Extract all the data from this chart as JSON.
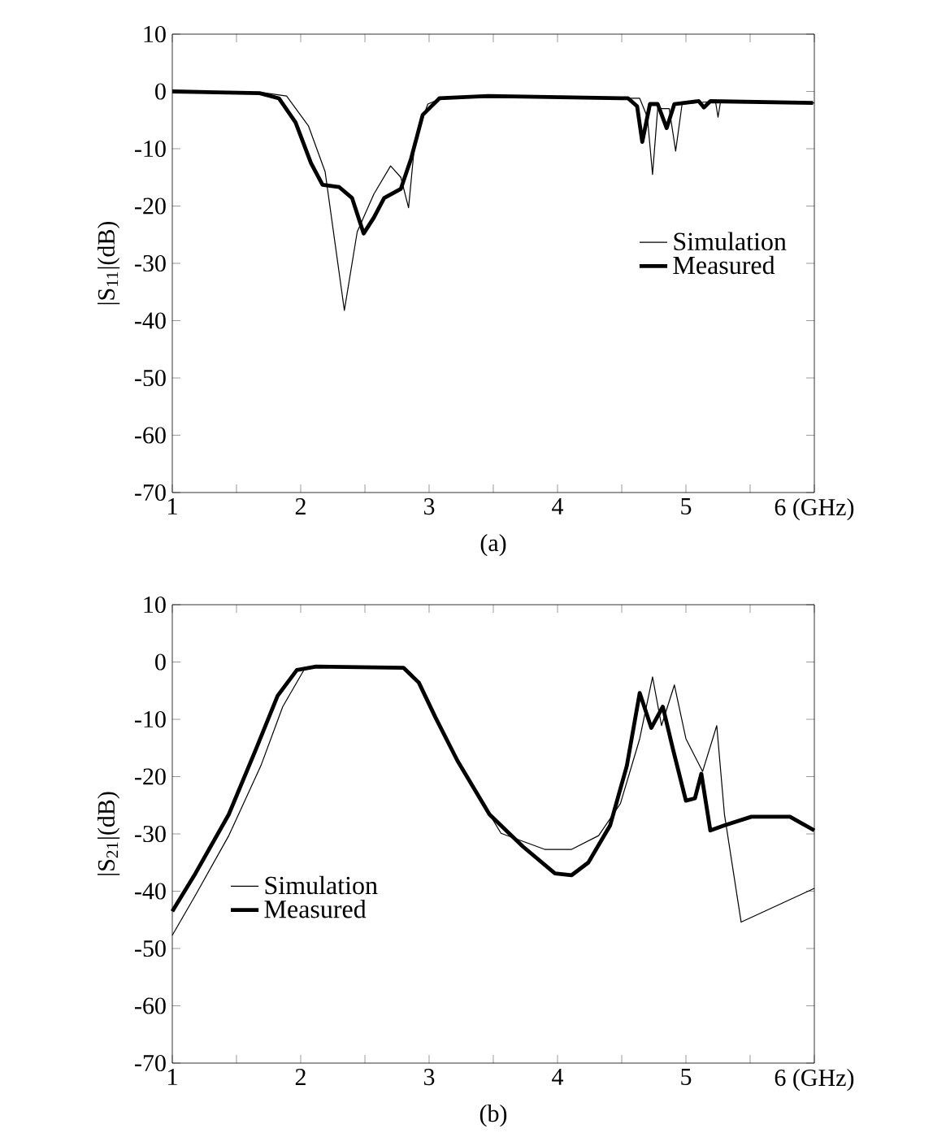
{
  "chart_data": [
    {
      "type": "line",
      "ylabel": "|S$_{11}$|(dB)",
      "annotations": [
        "(a)"
      ],
      "legend": "right",
      "grid": false,
      "marker": "none",
      "line_style": "solid",
      "xlim": [
        1,
        6
      ],
      "ylim": [
        -70,
        10
      ],
      "xticks": [
        1,
        {
          "value": 1.5,
          "label": null
        },
        2,
        {
          "value": 2.5,
          "label": null
        },
        3,
        {
          "value": 3.5,
          "label": null
        },
        4,
        {
          "value": 4.5,
          "label": null
        },
        5,
        {
          "value": 5.5,
          "label": null
        },
        {
          "value": 6,
          "label": "6 (GHz)"
        }
      ],
      "yticks": [
        -70,
        -60,
        -50,
        -40,
        -30,
        -20,
        -10,
        0,
        10
      ],
      "series": [
        {
          "name": "Simulation",
          "color": "#000000",
          "x": [
            1.0,
            1.7,
            1.89,
            2.06,
            2.19,
            2.34,
            2.44,
            2.57,
            2.7,
            2.78,
            2.84,
            2.89,
            2.99,
            3.12,
            4.55,
            4.64,
            4.7,
            4.74,
            4.78,
            4.87,
            4.92,
            4.97,
            5.23,
            5.25,
            5.27,
            6.0
          ],
          "values": [
            0,
            -0.2,
            -0.8,
            -6,
            -14,
            -38.2,
            -24.5,
            -17.9,
            -13,
            -15,
            -20.3,
            -8.5,
            -2.2,
            -1,
            -1.2,
            -1.2,
            -4.5,
            -14.5,
            -3,
            -3,
            -10.4,
            -2.2,
            -1.7,
            -4.5,
            -1.7,
            -2
          ]
        },
        {
          "name": "Measured",
          "color": "#000000",
          "x": [
            1.0,
            1.68,
            1.83,
            1.96,
            2.08,
            2.17,
            2.3,
            2.4,
            2.49,
            2.57,
            2.65,
            2.78,
            2.86,
            2.95,
            3.08,
            3.46,
            4.55,
            4.62,
            4.66,
            4.72,
            4.78,
            4.85,
            4.91,
            5.1,
            5.14,
            5.19,
            5.99
          ],
          "values": [
            0,
            -0.3,
            -1.2,
            -5.4,
            -12.5,
            -16.3,
            -16.7,
            -18.6,
            -24.8,
            -22,
            -18.6,
            -17,
            -11.7,
            -4.1,
            -1.2,
            -0.8,
            -1.2,
            -2.6,
            -8.8,
            -2.2,
            -2.2,
            -6.4,
            -2.2,
            -1.7,
            -2.8,
            -1.7,
            -2
          ]
        }
      ]
    },
    {
      "type": "line",
      "ylabel": "|S$_{21}$|(dB)",
      "annotations": [
        "(b)"
      ],
      "legend": "left",
      "grid": false,
      "marker": "none",
      "line_style": "solid",
      "xlim": [
        1,
        6
      ],
      "ylim": [
        -70,
        10
      ],
      "xticks": [
        1,
        {
          "value": 1.5,
          "label": null
        },
        2,
        {
          "value": 2.5,
          "label": null
        },
        3,
        {
          "value": 3.5,
          "label": null
        },
        4,
        {
          "value": 4.5,
          "label": null
        },
        5,
        {
          "value": 5.5,
          "label": null
        },
        {
          "value": 6,
          "label": "6 (GHz)"
        }
      ],
      "yticks": [
        -70,
        -60,
        -50,
        -40,
        -30,
        -20,
        -10,
        0,
        10
      ],
      "series": [
        {
          "name": "Simulation",
          "color": "#000000",
          "x": [
            1.0,
            1.18,
            1.44,
            1.69,
            1.86,
            2.03,
            2.16,
            2.8,
            2.92,
            3.05,
            3.22,
            3.56,
            3.9,
            4.11,
            4.32,
            4.49,
            4.64,
            4.74,
            4.81,
            4.91,
            5.0,
            5.13,
            5.24,
            5.3,
            5.43,
            6.0
          ],
          "values": [
            -47.7,
            -40.7,
            -30.3,
            -18.1,
            -7.8,
            -1.2,
            -0.8,
            -1.0,
            -3.6,
            -9.7,
            -17.2,
            -29.9,
            -32.7,
            -32.7,
            -30.3,
            -24.7,
            -13.4,
            -2.6,
            -11.1,
            -4,
            -13.4,
            -19.1,
            -11.1,
            -26.6,
            -45.4,
            -39.5
          ]
        },
        {
          "name": "Measured",
          "color": "#000000",
          "x": [
            1.0,
            1.18,
            1.44,
            1.65,
            1.82,
            1.97,
            2.12,
            2.8,
            2.92,
            3.05,
            3.22,
            3.47,
            3.73,
            3.98,
            4.11,
            4.24,
            4.41,
            4.54,
            4.64,
            4.73,
            4.82,
            4.9,
            5.0,
            5.07,
            5.12,
            5.19,
            5.3,
            5.51,
            5.81,
            6.0
          ],
          "values": [
            -43.5,
            -36.9,
            -26.6,
            -15.3,
            -5.9,
            -1.4,
            -0.8,
            -1.0,
            -3.6,
            -9.7,
            -17.2,
            -26.6,
            -32.2,
            -36.9,
            -37.2,
            -35,
            -28.5,
            -18.1,
            -5.4,
            -11.5,
            -7.8,
            -15.3,
            -24.2,
            -23.8,
            -19.5,
            -29.4,
            -28.5,
            -27,
            -27,
            -29.4
          ]
        }
      ]
    }
  ]
}
